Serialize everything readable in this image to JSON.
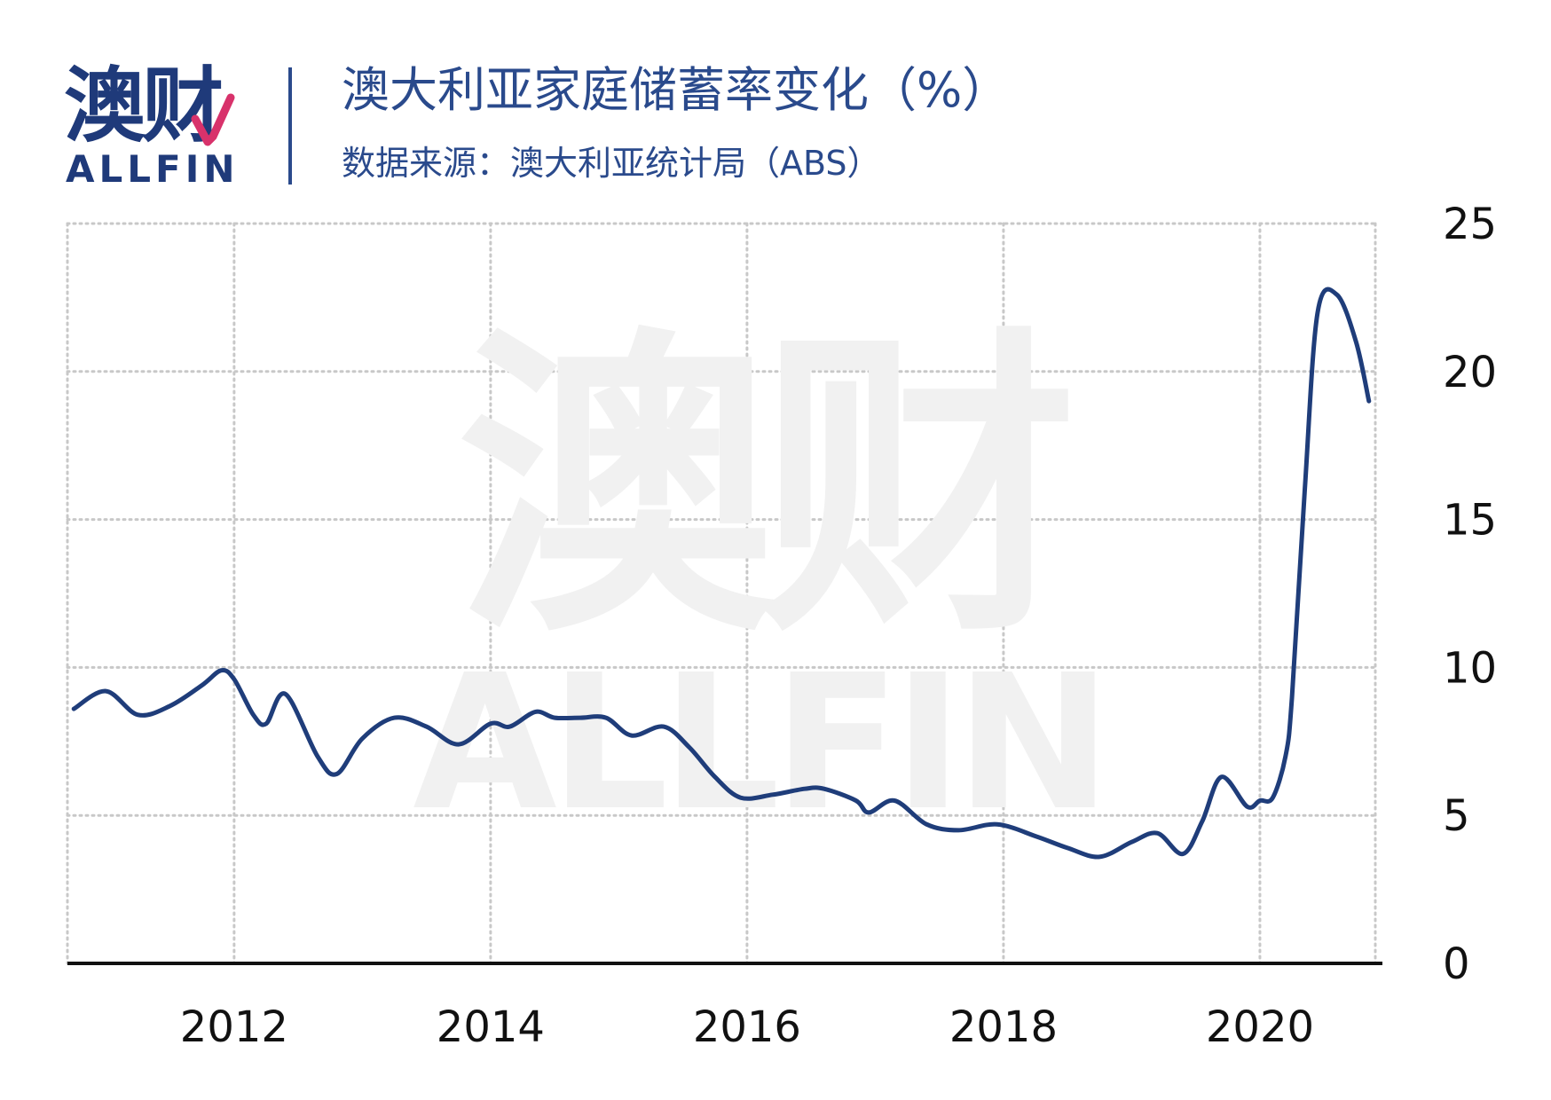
{
  "logo": {
    "cn": "澳财",
    "en": "ALLFIN"
  },
  "header": {
    "title": "澳大利亚家庭储蓄率变化（%）",
    "subtitle": "数据来源：澳大利亚统计局（ABS）"
  },
  "watermark": {
    "cn": "澳财",
    "en": "ALLFIN"
  },
  "colors": {
    "line": "#1f3d7a",
    "brand_blue": "#1f3a7a",
    "brand_pink": "#d8326b",
    "grid": "#c8c8c8",
    "watermark": "#f1f1f1"
  },
  "chart_data": {
    "type": "line",
    "title": "澳大利亚家庭储蓄率变化（%）",
    "xlabel": "",
    "ylabel": "",
    "xlim": [
      2010.7,
      2020.9
    ],
    "ylim": [
      0,
      25
    ],
    "x_ticks": [
      "2012",
      "2014",
      "2016",
      "2018",
      "2020"
    ],
    "y_ticks": [
      "0",
      "5",
      "10",
      "15",
      "20",
      "25"
    ],
    "y_axis_position": "right",
    "grid": true,
    "legend": "none",
    "series": [
      {
        "x": [
          2010.75,
          2011.0,
          2011.25,
          2011.5,
          2011.75,
          2011.9,
          2012.0,
          2012.15,
          2012.25,
          2012.4,
          2012.65,
          2012.8,
          2013.0,
          2013.25,
          2013.5,
          2013.75,
          2014.0,
          2014.15,
          2014.35,
          2014.5,
          2014.7,
          2014.9,
          2015.1,
          2015.35,
          2015.55,
          2015.75,
          2015.95,
          2016.2,
          2016.45,
          2016.6,
          2016.85,
          2016.95,
          2017.15,
          2017.4,
          2017.65,
          2017.95,
          2018.25,
          2018.5,
          2018.75,
          2019.0,
          2019.2,
          2019.4,
          2019.55,
          2019.7,
          2019.9,
          2020.0,
          2020.1,
          2020.2,
          2020.25,
          2020.35,
          2020.45,
          2020.6,
          2020.75,
          2020.85
        ],
        "values": [
          8.6,
          9.2,
          8.4,
          8.7,
          9.4,
          9.9,
          9.6,
          8.4,
          8.1,
          9.1,
          7.0,
          6.4,
          7.6,
          8.3,
          8.0,
          7.4,
          8.1,
          8.0,
          8.5,
          8.3,
          8.3,
          8.3,
          7.7,
          8.0,
          7.3,
          6.3,
          5.6,
          5.7,
          5.9,
          5.9,
          5.5,
          5.1,
          5.5,
          4.7,
          4.5,
          4.7,
          4.3,
          3.9,
          3.6,
          4.1,
          4.4,
          3.7,
          4.8,
          6.3,
          5.3,
          5.5,
          5.6,
          7.0,
          9.0,
          16.0,
          22.0,
          22.6,
          21.0,
          19.0
        ]
      }
    ]
  }
}
